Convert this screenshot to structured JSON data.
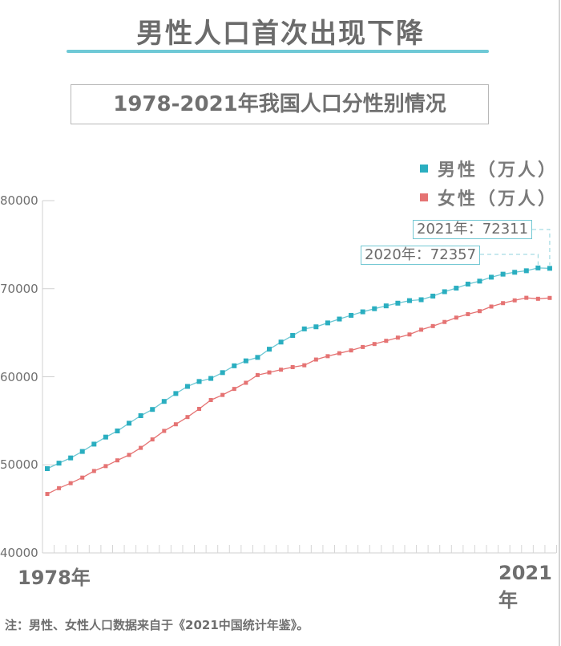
{
  "header": {
    "headline": "男性人口首次出现下降",
    "subtitle": "1978-2021年我国人口分性别情况"
  },
  "legend": [
    {
      "label": "男性（万人）",
      "color": "#2aaec0"
    },
    {
      "label": "女性（万人）",
      "color": "#e57373"
    }
  ],
  "axis": {
    "y_ticks": [
      "80000",
      "70000",
      "60000",
      "50000",
      "40000"
    ],
    "x_start_label": "1978年",
    "x_end_label": "2021年"
  },
  "callouts": {
    "c2021": "2021年：72311",
    "c2020": "2020年：72357"
  },
  "footer": {
    "note": "注：男性、女性人口数据来自于《2021中国统计年鉴》。"
  },
  "chart_data": {
    "type": "line",
    "title": "1978-2021年我国人口分性别情况",
    "xlabel": "",
    "ylabel": "",
    "ylim": [
      40000,
      80000
    ],
    "grid": false,
    "legend_position": "top-right",
    "x": [
      1978,
      1979,
      1980,
      1981,
      1982,
      1983,
      1984,
      1985,
      1986,
      1987,
      1988,
      1989,
      1990,
      1991,
      1992,
      1993,
      1994,
      1995,
      1996,
      1997,
      1998,
      1999,
      2000,
      2001,
      2002,
      2003,
      2004,
      2005,
      2006,
      2007,
      2008,
      2009,
      2010,
      2011,
      2012,
      2013,
      2014,
      2015,
      2016,
      2017,
      2018,
      2019,
      2020,
      2021
    ],
    "series": [
      {
        "name": "男性（万人）",
        "color": "#2aaec0",
        "values": [
          49567,
          50192,
          50785,
          51519,
          52352,
          53152,
          53848,
          54725,
          55581,
          56290,
          57201,
          58099,
          58904,
          59466,
          59811,
          60472,
          61246,
          61808,
          62200,
          63131,
          63940,
          64692,
          65437,
          65672,
          66115,
          66556,
          66976,
          67375,
          67728,
          68048,
          68357,
          68647,
          68748,
          69161,
          69660,
          70063,
          70522,
          70857,
          71307,
          71650,
          71864,
          72039,
          72357,
          72311
        ]
      },
      {
        "name": "女性（万人）",
        "color": "#e57373",
        "values": [
          46692,
          47350,
          47920,
          48550,
          49302,
          49855,
          50508,
          51128,
          51926,
          52887,
          53853,
          54605,
          55428,
          56356,
          57360,
          57935,
          58621,
          59317,
          60194,
          60492,
          60805,
          61093,
          61306,
          61955,
          62338,
          62671,
          62992,
          63381,
          63720,
          64081,
          64445,
          64803,
          65343,
          65755,
          66223,
          66716,
          67111,
          67453,
          67973,
          68361,
          68674,
          68966,
          68855,
          68949
        ]
      }
    ],
    "annotations": [
      "2021年：72311",
      "2020年：72357"
    ]
  }
}
